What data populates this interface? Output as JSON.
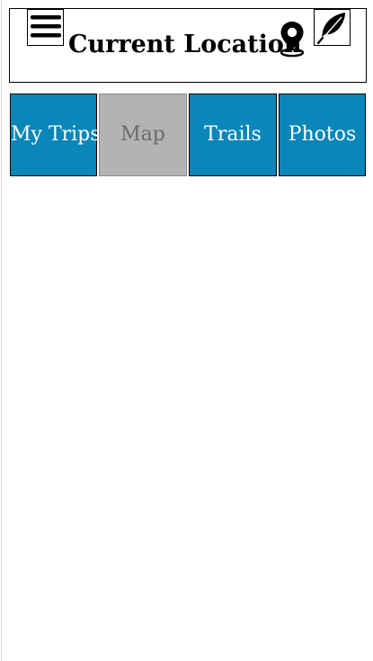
{
  "header": {
    "title": "Current Location",
    "menu_icon": "hamburger-menu-icon",
    "location_icon": "map-pin-icon",
    "feather_icon": "feather-icon"
  },
  "tabs": [
    {
      "label": "My Trips",
      "active": false
    },
    {
      "label": "Map",
      "active": true
    },
    {
      "label": "Trails",
      "active": false
    },
    {
      "label": "Photos",
      "active": false
    }
  ],
  "colors": {
    "tab_background": "#0a86b8",
    "tab_text": "#ffffff",
    "active_tab_background": "#b3b3b3",
    "active_tab_text": "#6b6b6b"
  }
}
